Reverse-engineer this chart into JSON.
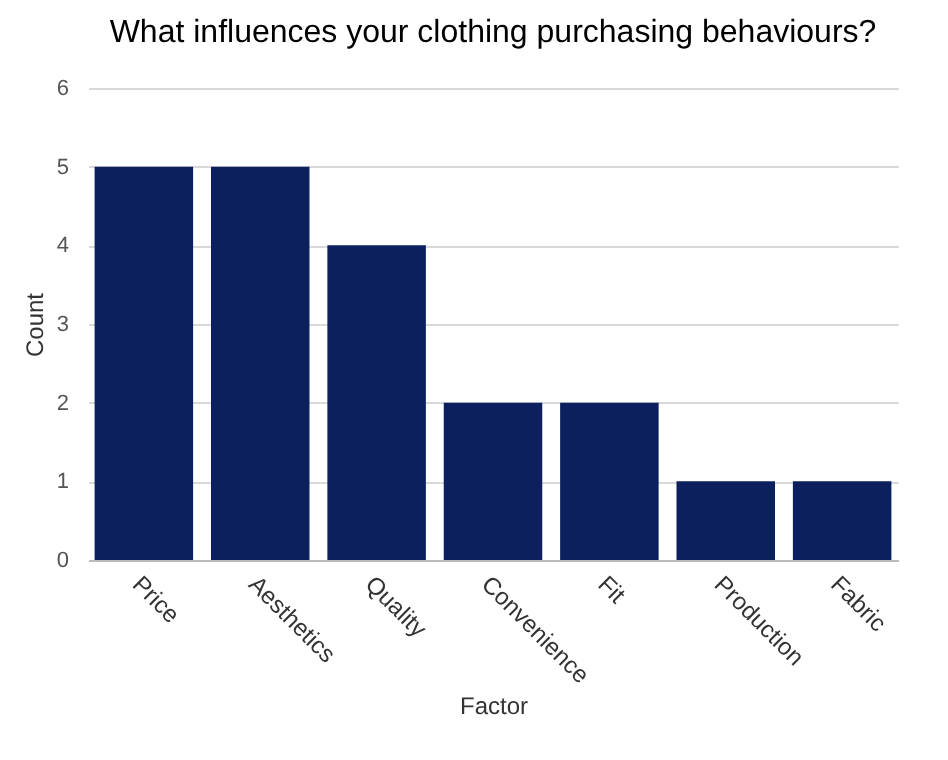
{
  "chart_data": {
    "type": "bar",
    "title": "What influences your clothing purchasing behaviours?",
    "xlabel": "Factor",
    "ylabel": "Count",
    "categories": [
      "Price",
      "Aesthetics",
      "Quality",
      "Convenience",
      "Fit",
      "Production",
      "Fabric"
    ],
    "values": [
      5,
      5,
      4,
      2,
      2,
      1,
      1
    ],
    "color": "#0c1f5e",
    "ylim": [
      0,
      6
    ],
    "yticks": [
      0,
      1,
      2,
      3,
      4,
      5,
      6
    ],
    "grid": "y"
  }
}
